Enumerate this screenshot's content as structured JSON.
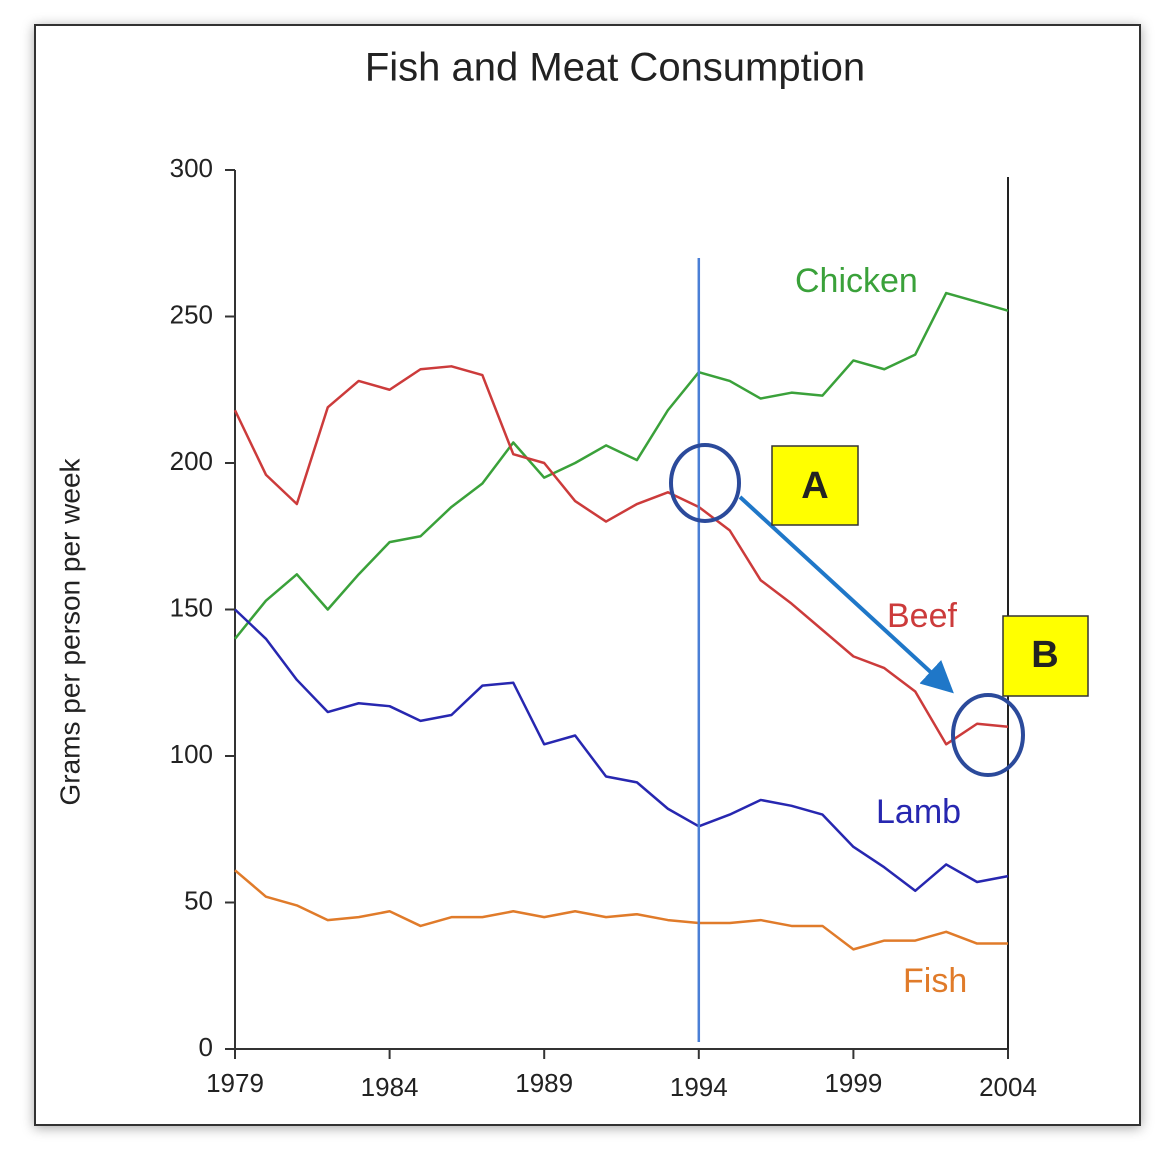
{
  "chart_data": {
    "type": "line",
    "title": "Fish and Meat Consumption",
    "y_label": "Grams per person per week",
    "x": [
      1979,
      1980,
      1981,
      1982,
      1983,
      1984,
      1985,
      1986,
      1987,
      1988,
      1989,
      1990,
      1991,
      1992,
      1993,
      1994,
      1995,
      1996,
      1997,
      1998,
      1999,
      2000,
      2001,
      2002,
      2003,
      2004
    ],
    "series": [
      {
        "name": "Chicken",
        "color": "#3aa13a",
        "values": [
          140,
          153,
          162,
          150,
          162,
          173,
          175,
          185,
          193,
          207,
          195,
          200,
          206,
          201,
          218,
          231,
          228,
          222,
          224,
          223,
          235,
          232,
          237,
          258,
          255,
          252
        ]
      },
      {
        "name": "Beef",
        "color": "#cc3b3b",
        "values": [
          218,
          196,
          186,
          219,
          228,
          225,
          232,
          233,
          230,
          203,
          200,
          187,
          180,
          186,
          190,
          185,
          177,
          160,
          152,
          143,
          134,
          130,
          122,
          104,
          111,
          110
        ]
      },
      {
        "name": "Lamb",
        "color": "#2727b0",
        "values": [
          150,
          140,
          126,
          115,
          118,
          117,
          112,
          114,
          124,
          125,
          104,
          107,
          93,
          91,
          82,
          76,
          80,
          85,
          83,
          80,
          69,
          62,
          54,
          63,
          57,
          59
        ]
      },
      {
        "name": "Fish",
        "color": "#e07b2a",
        "values": [
          61,
          52,
          49,
          44,
          45,
          47,
          42,
          45,
          45,
          47,
          45,
          47,
          45,
          46,
          44,
          43,
          43,
          44,
          42,
          42,
          34,
          37,
          37,
          40,
          36,
          36
        ]
      }
    ],
    "xlim": [
      1979,
      2004
    ],
    "xticks": [
      1979,
      1984,
      1989,
      1994,
      1999,
      2004
    ],
    "ylim": [
      0,
      300
    ],
    "yticks": [
      0,
      50,
      100,
      150,
      200,
      250,
      300
    ],
    "vline": 1994,
    "vline_color": "#4a7fd6",
    "annotations": [
      "A",
      "B"
    ]
  }
}
